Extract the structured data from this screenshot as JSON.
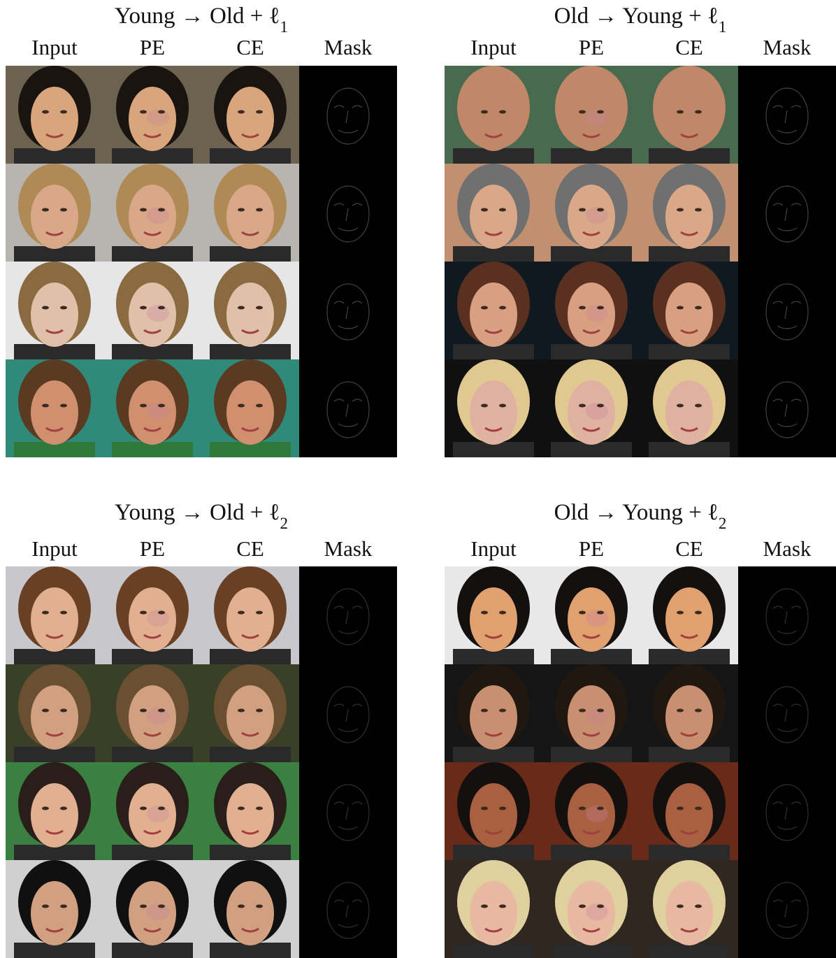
{
  "panels": [
    {
      "title": {
        "text": "Young → Old + ℓ",
        "subscript": "1"
      },
      "columns": [
        "Input",
        "PE",
        "CE",
        "Mask"
      ]
    },
    {
      "title": {
        "text": "Old → Young + ℓ",
        "subscript": "1"
      },
      "columns": [
        "Input",
        "PE",
        "CE",
        "Mask"
      ]
    },
    {
      "title": {
        "text": "Young → Old + ℓ",
        "subscript": "2"
      },
      "columns": [
        "Input",
        "PE",
        "CE",
        "Mask"
      ]
    },
    {
      "title": {
        "text": "Old → Young + ℓ",
        "subscript": "2"
      },
      "columns": [
        "Input",
        "PE",
        "CE",
        "Mask"
      ]
    }
  ]
}
